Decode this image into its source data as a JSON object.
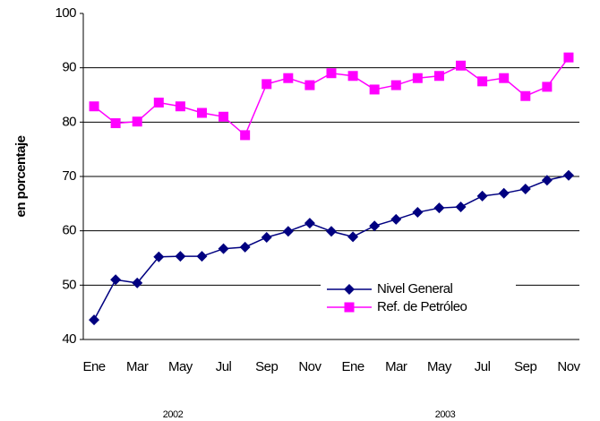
{
  "chart_data": {
    "type": "line",
    "y_label": "en porcentaje",
    "categories": [
      "Ene",
      null,
      "Mar",
      null,
      "May",
      null,
      "Jul",
      null,
      "Sep",
      null,
      "Nov",
      null,
      "Ene",
      null,
      "Mar",
      null,
      "May",
      null,
      "Jul",
      null,
      "Sep",
      null,
      "Nov"
    ],
    "groups": [
      "2002",
      "2003"
    ],
    "series": [
      {
        "name": "Nivel General",
        "color": "#000080",
        "marker": "diamond",
        "values": [
          43.6,
          51.0,
          50.4,
          55.2,
          55.3,
          55.3,
          56.7,
          57.0,
          58.8,
          59.9,
          61.4,
          59.9,
          58.9,
          60.9,
          62.1,
          63.4,
          64.2,
          64.4,
          66.4,
          66.9,
          67.7,
          69.3,
          70.2
        ]
      },
      {
        "name": "Ref. de Petróleo",
        "color": "#ff00ff",
        "marker": "square",
        "values": [
          82.9,
          79.8,
          80.1,
          83.6,
          82.9,
          81.7,
          81.0,
          77.6,
          87.0,
          88.1,
          86.8,
          89.0,
          88.5,
          86.0,
          86.8,
          88.1,
          88.5,
          90.4,
          87.5,
          88.1,
          84.8,
          86.5,
          91.9
        ]
      }
    ],
    "ylim": [
      40,
      100
    ],
    "yticks": [
      40,
      50,
      60,
      70,
      80,
      90,
      100
    ],
    "grid": true,
    "legend": "lower right"
  }
}
